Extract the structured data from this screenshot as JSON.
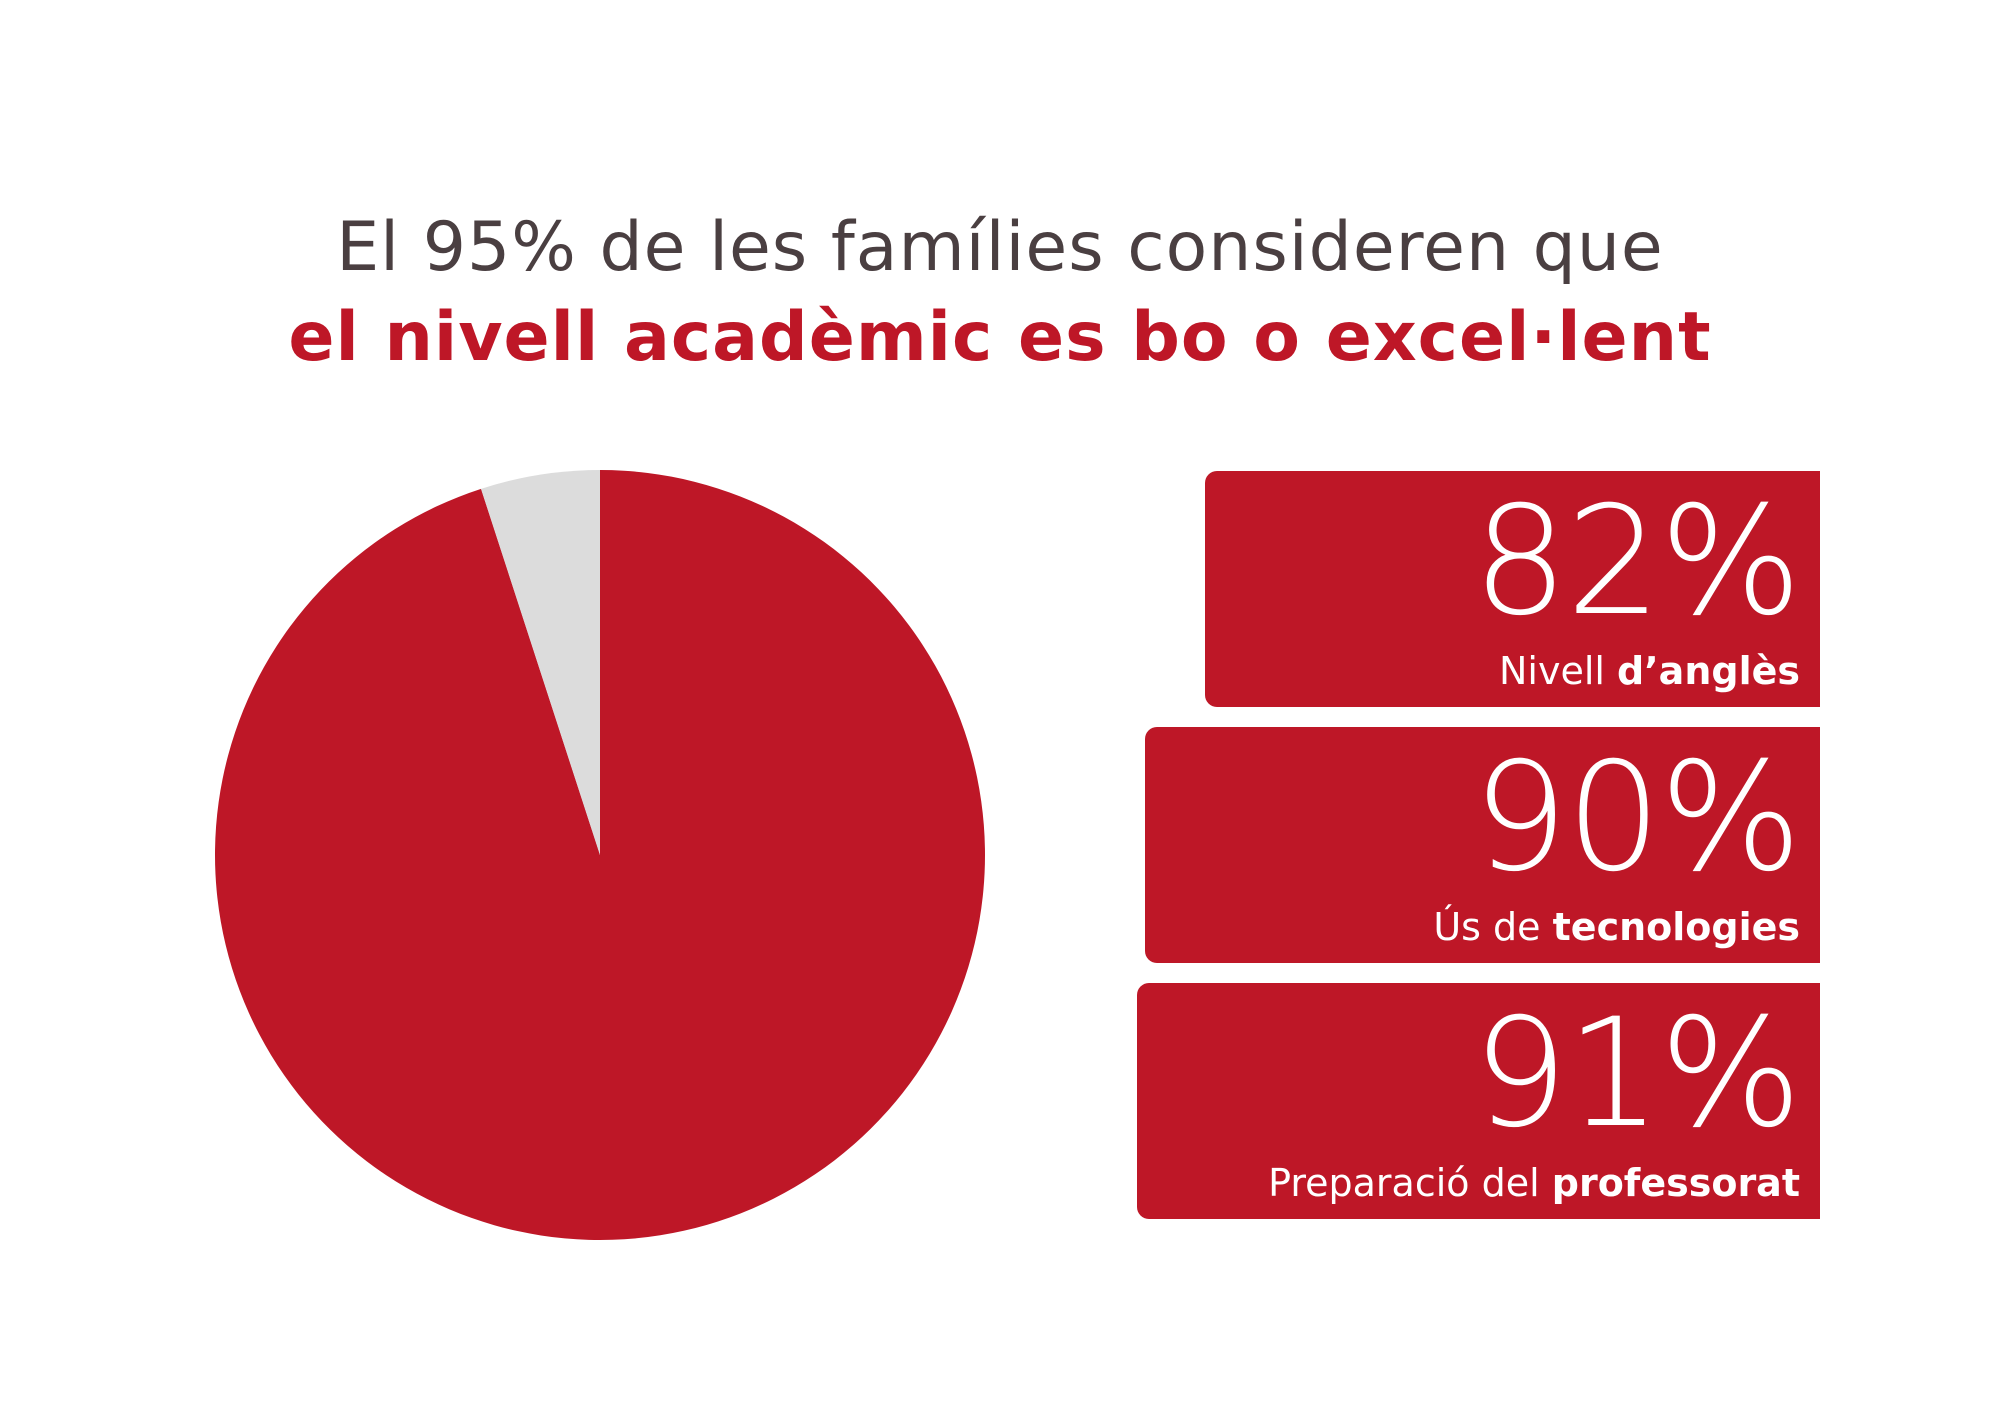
{
  "colors": {
    "accent": "#be1727",
    "remainder": "#dcdcdc",
    "headline_text": "#4a3f41",
    "box_text": "#ffffff"
  },
  "headline": {
    "line1": "El 95% de les famílies consideren que",
    "line2": "el nivell acadèmic es bo o excel·lent"
  },
  "chart_data": {
    "type": "pie",
    "title": "",
    "slices": [
      {
        "label": "",
        "value": 95,
        "color": "#be1727"
      },
      {
        "label": "",
        "value": 5,
        "color": "#dcdcdc"
      }
    ]
  },
  "stats": [
    {
      "value": "82%",
      "label_light": "Nivell ",
      "label_bold": "d’anglès"
    },
    {
      "value": "90%",
      "label_light": "Ús de ",
      "label_bold": "tecnologies"
    },
    {
      "value": "91%",
      "label_light": "Preparació del ",
      "label_bold": "professorat"
    }
  ]
}
